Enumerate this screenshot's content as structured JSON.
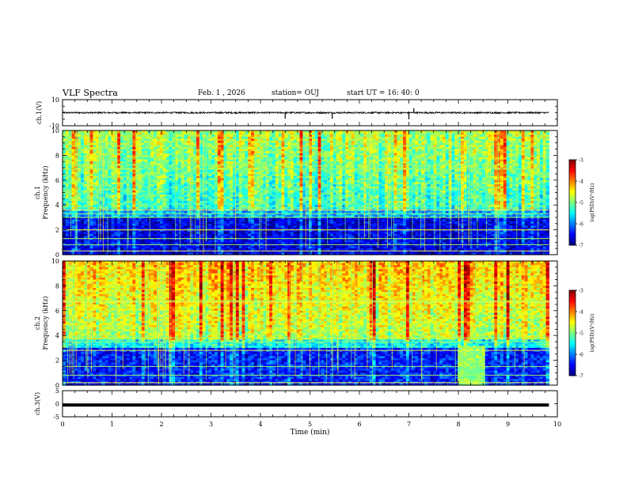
{
  "header": {
    "title": "VLF Spectra",
    "date": "Feb. 1 , 2026",
    "station": "station= OUJ",
    "start": "start  UT =   16: 40: 0"
  },
  "chart_data": [
    {
      "type": "line",
      "name": "ch1-waveform",
      "ylabel": "ch.1(V)",
      "ylim": [
        -10,
        10
      ],
      "yticks": [
        "10",
        "-10"
      ],
      "xlim": [
        0,
        10
      ],
      "series": [
        {
          "name": "ch.1",
          "level": 0,
          "noise": 0.6,
          "end_x": 9.83,
          "spikes": [
            {
              "x": 4.5,
              "y": -4.6
            },
            {
              "x": 5.45,
              "y": -4.6
            },
            {
              "x": 7.0,
              "y": -5.0
            },
            {
              "x": 7.1,
              "y": 3.5
            }
          ]
        }
      ]
    },
    {
      "type": "heatmap",
      "name": "ch1-spectrogram",
      "ylabel": "ch.1",
      "ylabel2": "Frequency (kHz)",
      "ylim": [
        0,
        10
      ],
      "yticks": [
        "0",
        "2",
        "4",
        "6",
        "8",
        "10"
      ],
      "xlim": [
        0,
        10
      ],
      "end_x": 9.83,
      "colorbar": {
        "label": "log(PSD)(V²/Hz)",
        "range": [
          -7,
          -3
        ],
        "ticks": [
          "-3",
          "-4",
          "-5",
          "-6",
          "-7"
        ]
      },
      "bands_khz": [
        0.3,
        0.8,
        1.3,
        2.0,
        3.0,
        3.3,
        3.6,
        6.9,
        7.2
      ],
      "high_band_level": -5.1,
      "low_band_level": -6.6
    },
    {
      "type": "heatmap",
      "name": "ch2-spectrogram",
      "ylabel": "ch.2",
      "ylabel2": "Frequency (kHz)",
      "ylim": [
        0,
        10
      ],
      "yticks": [
        "0",
        "2",
        "4",
        "6",
        "8",
        "10"
      ],
      "xlim": [
        0,
        10
      ],
      "end_x": 9.83,
      "colorbar": {
        "label": "log(PSD)(V²/Hz)",
        "range": [
          -7,
          -3
        ],
        "ticks": [
          "-3",
          "-4",
          "-5",
          "-6",
          "-7"
        ]
      },
      "bands_khz": [
        0.2,
        0.8,
        1.5,
        2.8,
        3.5,
        3.8,
        6.7,
        6.8
      ],
      "high_band_level": -4.6,
      "low_band_level": -6.4,
      "burst_interval_min": [
        8.0,
        8.55
      ]
    },
    {
      "type": "line",
      "name": "ch3-waveform",
      "ylabel": "ch.3(V)",
      "ylim": [
        -5,
        5
      ],
      "yticks": [
        "5",
        "0",
        "-5"
      ],
      "xlim": [
        0,
        10
      ],
      "xlabel": "Time (min)",
      "xticks": [
        "0",
        "1",
        "2",
        "3",
        "4",
        "5",
        "6",
        "7",
        "8",
        "9",
        "10"
      ],
      "series": [
        {
          "name": "ch.3",
          "level": -0.5,
          "end_x": 9.83
        }
      ]
    }
  ]
}
